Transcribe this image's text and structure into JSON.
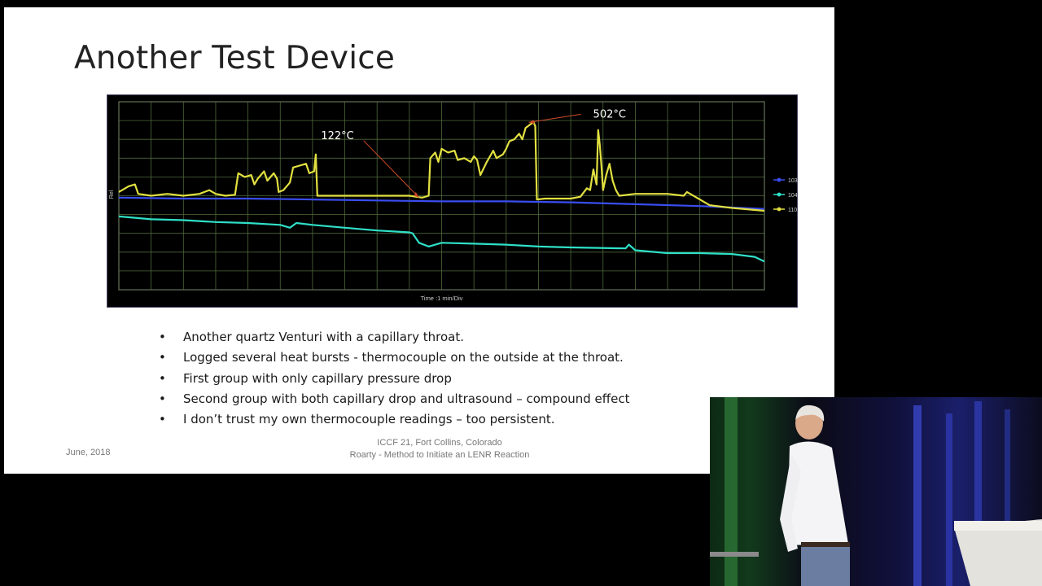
{
  "slide": {
    "title": "Another Test Device",
    "bullet_char": "•",
    "bullets": [
      "Another quartz Venturi with a capillary throat.",
      "Logged several heat bursts - thermocouple on the outside at the throat.",
      "First group with only capillary pressure drop",
      "Second group with both capillary drop and ultrasound – compound effect",
      "I don’t trust my own thermocouple readings – too persistent."
    ],
    "footer_date": "June, 2018",
    "footer_line1": "ICCF 21, Fort Collins, Colorado",
    "footer_line2": "Roarty - Method to Initiate an LENR Reaction"
  },
  "chart_data": {
    "type": "line",
    "title": "",
    "xlabel": "Time :1 min/Div",
    "ylabel": "Rel",
    "grid": true,
    "legend_position": "right",
    "x_divisions": 20,
    "y_divisions": 10,
    "xlim": [
      0,
      20
    ],
    "ylim": [
      0,
      10
    ],
    "annotations": [
      {
        "text": "122°C",
        "point": [
          9.3,
          4.9
        ],
        "label_side": "left-up"
      },
      {
        "text": "502°C",
        "point": [
          12.7,
          8.9
        ],
        "label_side": "right-up"
      }
    ],
    "series": [
      {
        "name": "103",
        "color": "#3a4df0",
        "points": [
          [
            0,
            4.9
          ],
          [
            2,
            4.85
          ],
          [
            4,
            4.85
          ],
          [
            6,
            4.8
          ],
          [
            8,
            4.75
          ],
          [
            10,
            4.7
          ],
          [
            12,
            4.7
          ],
          [
            14,
            4.65
          ],
          [
            16,
            4.55
          ],
          [
            18,
            4.45
          ],
          [
            20,
            4.3
          ]
        ]
      },
      {
        "name": "104",
        "color": "#2fe0c8",
        "points": [
          [
            0,
            3.9
          ],
          [
            1,
            3.75
          ],
          [
            2,
            3.7
          ],
          [
            3,
            3.6
          ],
          [
            4,
            3.55
          ],
          [
            5,
            3.45
          ],
          [
            5.3,
            3.3
          ],
          [
            5.5,
            3.55
          ],
          [
            6,
            3.45
          ],
          [
            7,
            3.3
          ],
          [
            8,
            3.15
          ],
          [
            9,
            3.05
          ],
          [
            9.1,
            3.0
          ],
          [
            9.3,
            2.5
          ],
          [
            9.6,
            2.3
          ],
          [
            10,
            2.5
          ],
          [
            11,
            2.45
          ],
          [
            12,
            2.4
          ],
          [
            13,
            2.3
          ],
          [
            14,
            2.25
          ],
          [
            15.7,
            2.2
          ],
          [
            15.8,
            2.4
          ],
          [
            16,
            2.1
          ],
          [
            17,
            1.95
          ],
          [
            18,
            1.95
          ],
          [
            19,
            1.9
          ],
          [
            19.7,
            1.75
          ],
          [
            20,
            1.5
          ]
        ]
      },
      {
        "name": "110",
        "color": "#e2e040",
        "points": [
          [
            0,
            5.2
          ],
          [
            0.3,
            5.5
          ],
          [
            0.5,
            5.6
          ],
          [
            0.6,
            5.1
          ],
          [
            1,
            5.0
          ],
          [
            1.5,
            5.1
          ],
          [
            2,
            5.0
          ],
          [
            2.5,
            5.1
          ],
          [
            2.8,
            5.3
          ],
          [
            3,
            5.1
          ],
          [
            3.3,
            5.0
          ],
          [
            3.6,
            5.05
          ],
          [
            3.7,
            6.2
          ],
          [
            3.9,
            6.0
          ],
          [
            4.1,
            6.1
          ],
          [
            4.2,
            5.6
          ],
          [
            4.3,
            5.9
          ],
          [
            4.5,
            6.3
          ],
          [
            4.6,
            5.8
          ],
          [
            4.8,
            6.2
          ],
          [
            4.9,
            5.9
          ],
          [
            4.95,
            5.2
          ],
          [
            5.1,
            5.3
          ],
          [
            5.3,
            5.7
          ],
          [
            5.4,
            6.5
          ],
          [
            5.6,
            6.6
          ],
          [
            5.8,
            6.7
          ],
          [
            5.9,
            6.2
          ],
          [
            6.05,
            6.3
          ],
          [
            6.1,
            7.2
          ],
          [
            6.15,
            5.0
          ],
          [
            8,
            5.0
          ],
          [
            9,
            5.0
          ],
          [
            9.4,
            4.9
          ],
          [
            9.6,
            5.0
          ],
          [
            9.65,
            7.0
          ],
          [
            9.8,
            7.3
          ],
          [
            9.9,
            6.8
          ],
          [
            10.0,
            7.5
          ],
          [
            10.2,
            7.3
          ],
          [
            10.4,
            7.4
          ],
          [
            10.5,
            6.9
          ],
          [
            10.7,
            7.0
          ],
          [
            10.9,
            6.8
          ],
          [
            11.0,
            7.1
          ],
          [
            11.1,
            6.9
          ],
          [
            11.2,
            6.1
          ],
          [
            11.4,
            6.8
          ],
          [
            11.5,
            7.1
          ],
          [
            11.6,
            7.4
          ],
          [
            11.7,
            7.0
          ],
          [
            11.9,
            7.2
          ],
          [
            12.0,
            7.5
          ],
          [
            12.1,
            7.9
          ],
          [
            12.25,
            8.0
          ],
          [
            12.4,
            8.3
          ],
          [
            12.5,
            8.0
          ],
          [
            12.6,
            8.6
          ],
          [
            12.75,
            8.8
          ],
          [
            12.85,
            8.9
          ],
          [
            12.9,
            8.7
          ],
          [
            12.95,
            4.8
          ],
          [
            13.2,
            4.85
          ],
          [
            14,
            4.85
          ],
          [
            14.3,
            4.95
          ],
          [
            14.5,
            5.4
          ],
          [
            14.6,
            5.3
          ],
          [
            14.7,
            6.4
          ],
          [
            14.8,
            5.6
          ],
          [
            14.85,
            8.5
          ],
          [
            14.9,
            7.7
          ],
          [
            14.95,
            6.6
          ],
          [
            15.0,
            5.3
          ],
          [
            15.1,
            6.1
          ],
          [
            15.2,
            6.7
          ],
          [
            15.3,
            5.8
          ],
          [
            15.4,
            5.3
          ],
          [
            15.5,
            5.0
          ],
          [
            16,
            5.1
          ],
          [
            17,
            5.1
          ],
          [
            17.5,
            5.0
          ],
          [
            17.6,
            5.2
          ],
          [
            17.7,
            5.1
          ],
          [
            18.0,
            4.8
          ],
          [
            18.3,
            4.5
          ],
          [
            19,
            4.35
          ],
          [
            20,
            4.2
          ]
        ]
      }
    ]
  }
}
